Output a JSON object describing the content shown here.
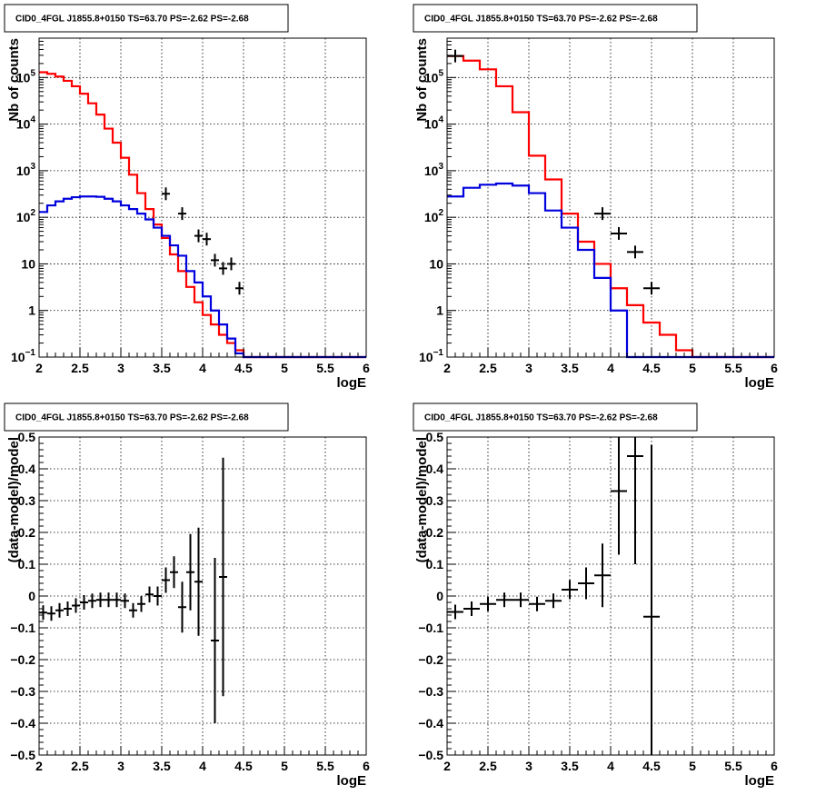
{
  "chart_data": [
    {
      "id": "top-left",
      "type": "histogram",
      "title": "CID0_4FGL J1855.8+0150 TS=63.70 PS=-2.62 PS=-2.68",
      "xlabel": "logE",
      "ylabel": "Nb of counts",
      "xlim": [
        2,
        6
      ],
      "ylim": [
        0.1,
        700000
      ],
      "yscale": "log",
      "grid": true,
      "xticks": [
        "2",
        "2.5",
        "3",
        "3.5",
        "4",
        "4.5",
        "5",
        "5.5",
        "6"
      ],
      "yticks": [
        {
          "value": 0.1,
          "label": "10",
          "exp": "−1"
        },
        {
          "value": 1,
          "label": "1",
          "exp": ""
        },
        {
          "value": 10,
          "label": "10",
          "exp": ""
        },
        {
          "value": 100,
          "label": "10",
          "exp": "2"
        },
        {
          "value": 1000,
          "label": "10",
          "exp": "3"
        },
        {
          "value": 10000,
          "label": "10",
          "exp": "4"
        },
        {
          "value": 100000,
          "label": "10",
          "exp": "5"
        }
      ],
      "bin_width": 0.1,
      "bin_edges_start": 2.0,
      "series": [
        {
          "color": "#ff0000",
          "kind": "step",
          "values": [
            130000,
            120000,
            105000,
            85000,
            65000,
            45000,
            28000,
            16000,
            8000,
            4000,
            1900,
            820,
            330,
            150,
            70,
            36,
            16,
            7,
            3.2,
            1.5,
            0.8,
            0.5,
            0.3,
            0.2,
            0.14,
            0.1,
            0.1,
            0.1,
            0.1,
            0.1,
            0.1,
            0.1,
            0.1,
            0.1,
            0.1,
            0.1,
            0.1,
            0.1,
            0.1,
            0.1
          ]
        },
        {
          "color": "#0000dd",
          "kind": "step",
          "values": [
            130,
            180,
            220,
            250,
            270,
            280,
            280,
            275,
            250,
            220,
            180,
            150,
            120,
            90,
            60,
            40,
            25,
            15,
            7,
            4,
            2,
            1,
            0.5,
            0.25,
            0.12,
            0.1,
            0.1,
            0.1,
            0.1,
            0.1,
            0.1,
            0.1,
            0.1,
            0.1,
            0.1,
            0.1,
            0.1,
            0.1,
            0.1,
            0.1
          ]
        }
      ],
      "points": [
        {
          "x": 3.55,
          "y": 320
        },
        {
          "x": 3.75,
          "y": 120
        },
        {
          "x": 3.95,
          "y": 40
        },
        {
          "x": 4.05,
          "y": 34
        },
        {
          "x": 4.15,
          "y": 12
        },
        {
          "x": 4.25,
          "y": 8
        },
        {
          "x": 4.35,
          "y": 10
        },
        {
          "x": 4.45,
          "y": 3
        }
      ]
    },
    {
      "id": "top-right",
      "type": "histogram",
      "title": "CID0_4FGL J1855.8+0150 TS=63.70 PS=-2.62 PS=-2.68",
      "xlabel": "logE",
      "ylabel": "Nb of counts",
      "xlim": [
        2,
        6
      ],
      "ylim": [
        0.1,
        700000
      ],
      "yscale": "log",
      "grid": true,
      "xticks": [
        "2",
        "2.5",
        "3",
        "3.5",
        "4",
        "4.5",
        "5",
        "5.5",
        "6"
      ],
      "yticks": [
        {
          "value": 0.1,
          "label": "10",
          "exp": "−1"
        },
        {
          "value": 1,
          "label": "1",
          "exp": ""
        },
        {
          "value": 10,
          "label": "10",
          "exp": ""
        },
        {
          "value": 100,
          "label": "10",
          "exp": "2"
        },
        {
          "value": 1000,
          "label": "10",
          "exp": "3"
        },
        {
          "value": 10000,
          "label": "10",
          "exp": "4"
        },
        {
          "value": 100000,
          "label": "10",
          "exp": "5"
        }
      ],
      "bin_width": 0.2,
      "bin_edges_start": 2.0,
      "series": [
        {
          "color": "#ff0000",
          "kind": "step",
          "values": [
            290000,
            230000,
            150000,
            65000,
            18000,
            2100,
            650,
            120,
            30,
            10,
            3,
            1.3,
            0.55,
            0.3,
            0.14,
            0.1,
            0.1,
            0.1,
            0.1,
            0.1
          ]
        },
        {
          "color": "#0000dd",
          "kind": "step",
          "values": [
            280,
            430,
            500,
            530,
            480,
            330,
            140,
            60,
            20,
            5,
            1,
            0.1,
            0.1,
            0.1,
            0.1,
            0.1,
            0.1,
            0.1,
            0.1,
            0.1
          ]
        }
      ],
      "points": [
        {
          "x": 2.1,
          "y": 290000
        },
        {
          "x": 3.9,
          "y": 120
        },
        {
          "x": 4.1,
          "y": 45
        },
        {
          "x": 4.3,
          "y": 18
        },
        {
          "x": 4.5,
          "y": 3
        }
      ]
    },
    {
      "id": "bottom-left",
      "type": "scatter",
      "title": "CID0_4FGL J1855.8+0150 TS=63.70 PS=-2.62 PS=-2.68",
      "xlabel": "logE",
      "ylabel": "(data-model)/model",
      "xlim": [
        2,
        6
      ],
      "ylim": [
        -0.5,
        0.5
      ],
      "yscale": "linear",
      "grid": true,
      "xticks": [
        "2",
        "2.5",
        "3",
        "3.5",
        "4",
        "4.5",
        "5",
        "5.5",
        "6"
      ],
      "yticks": [
        {
          "value": -0.5,
          "label": "−0.5",
          "exp": ""
        },
        {
          "value": -0.4,
          "label": "−0.4",
          "exp": ""
        },
        {
          "value": -0.3,
          "label": "−0.3",
          "exp": ""
        },
        {
          "value": -0.2,
          "label": "−0.2",
          "exp": ""
        },
        {
          "value": -0.1,
          "label": "−0.1",
          "exp": ""
        },
        {
          "value": 0,
          "label": "0",
          "exp": ""
        },
        {
          "value": 0.1,
          "label": "0.1",
          "exp": ""
        },
        {
          "value": 0.2,
          "label": "0.2",
          "exp": ""
        },
        {
          "value": 0.3,
          "label": "0.3",
          "exp": ""
        },
        {
          "value": 0.4,
          "label": "0.4",
          "exp": ""
        },
        {
          "value": 0.5,
          "label": "0.5",
          "exp": ""
        }
      ],
      "xerr": 0.05,
      "points": [
        {
          "x": 2.05,
          "y": -0.052,
          "err": 0.02
        },
        {
          "x": 2.15,
          "y": -0.055,
          "err": 0.02
        },
        {
          "x": 2.25,
          "y": -0.045,
          "err": 0.02
        },
        {
          "x": 2.35,
          "y": -0.04,
          "err": 0.02
        },
        {
          "x": 2.45,
          "y": -0.03,
          "err": 0.02
        },
        {
          "x": 2.55,
          "y": -0.02,
          "err": 0.015
        },
        {
          "x": 2.65,
          "y": -0.015,
          "err": 0.015
        },
        {
          "x": 2.75,
          "y": -0.012,
          "err": 0.015
        },
        {
          "x": 2.85,
          "y": -0.012,
          "err": 0.015
        },
        {
          "x": 2.95,
          "y": -0.012,
          "err": 0.015
        },
        {
          "x": 3.05,
          "y": -0.015,
          "err": 0.02
        },
        {
          "x": 3.15,
          "y": -0.045,
          "err": 0.02
        },
        {
          "x": 3.25,
          "y": -0.025,
          "err": 0.025
        },
        {
          "x": 3.35,
          "y": 0.005,
          "err": 0.025
        },
        {
          "x": 3.45,
          "y": 0.0,
          "err": 0.03
        },
        {
          "x": 3.55,
          "y": 0.05,
          "err": 0.04
        },
        {
          "x": 3.65,
          "y": 0.075,
          "err": 0.05
        },
        {
          "x": 3.75,
          "y": -0.035,
          "err": 0.08
        },
        {
          "x": 3.85,
          "y": 0.075,
          "err": 0.12
        },
        {
          "x": 3.95,
          "y": 0.045,
          "err": 0.17
        },
        {
          "x": 4.15,
          "y": -0.14,
          "err": 0.26
        },
        {
          "x": 4.25,
          "y": 0.06,
          "err": 0.375
        }
      ]
    },
    {
      "id": "bottom-right",
      "type": "scatter",
      "title": "CID0_4FGL J1855.8+0150 TS=63.70 PS=-2.62 PS=-2.68",
      "xlabel": "logE",
      "ylabel": "(data-model)/model",
      "xlim": [
        2,
        6
      ],
      "ylim": [
        -0.5,
        0.5
      ],
      "yscale": "linear",
      "grid": true,
      "xticks": [
        "2",
        "2.5",
        "3",
        "3.5",
        "4",
        "4.5",
        "5",
        "5.5",
        "6"
      ],
      "yticks": [
        {
          "value": -0.5,
          "label": "−0.5",
          "exp": ""
        },
        {
          "value": -0.4,
          "label": "−0.4",
          "exp": ""
        },
        {
          "value": -0.3,
          "label": "−0.3",
          "exp": ""
        },
        {
          "value": -0.2,
          "label": "−0.2",
          "exp": ""
        },
        {
          "value": -0.1,
          "label": "−0.1",
          "exp": ""
        },
        {
          "value": 0,
          "label": "0",
          "exp": ""
        },
        {
          "value": 0.1,
          "label": "0.1",
          "exp": ""
        },
        {
          "value": 0.2,
          "label": "0.2",
          "exp": ""
        },
        {
          "value": 0.3,
          "label": "0.3",
          "exp": ""
        },
        {
          "value": 0.4,
          "label": "0.4",
          "exp": ""
        },
        {
          "value": 0.5,
          "label": "0.5",
          "exp": ""
        }
      ],
      "xerr": 0.1,
      "points": [
        {
          "x": 2.1,
          "y": -0.05,
          "err": 0.02
        },
        {
          "x": 2.3,
          "y": -0.04,
          "err": 0.02
        },
        {
          "x": 2.5,
          "y": -0.025,
          "err": 0.015
        },
        {
          "x": 2.7,
          "y": -0.012,
          "err": 0.015
        },
        {
          "x": 2.9,
          "y": -0.012,
          "err": 0.015
        },
        {
          "x": 3.1,
          "y": -0.025,
          "err": 0.02
        },
        {
          "x": 3.3,
          "y": -0.015,
          "err": 0.02
        },
        {
          "x": 3.5,
          "y": 0.02,
          "err": 0.03
        },
        {
          "x": 3.7,
          "y": 0.04,
          "err": 0.05
        },
        {
          "x": 3.9,
          "y": 0.065,
          "err": 0.1
        },
        {
          "x": 4.1,
          "y": 0.33,
          "err": 0.2
        },
        {
          "x": 4.3,
          "y": 0.44,
          "err": 0.34
        },
        {
          "x": 4.5,
          "y": -0.065,
          "err": 0.54
        }
      ]
    }
  ]
}
